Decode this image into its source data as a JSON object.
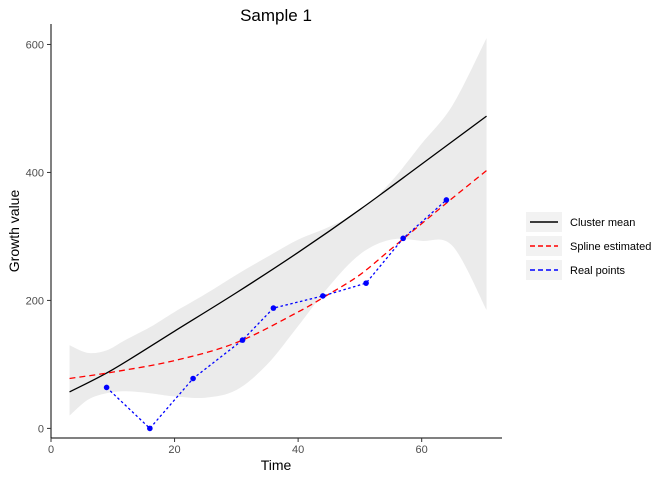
{
  "chart_data": {
    "type": "line",
    "title": "Sample  1",
    "xlabel": "Time",
    "ylabel": "Growth value",
    "xlim": [
      0,
      73
    ],
    "ylim": [
      -15,
      632
    ],
    "xticks": [
      0,
      20,
      40,
      60
    ],
    "yticks": [
      0,
      200,
      400,
      600
    ],
    "grid": false,
    "legend_position": "right",
    "band": {
      "color": "#ebebeb",
      "x": [
        3,
        6,
        9,
        12,
        16,
        20,
        25,
        30,
        35,
        40,
        45,
        50,
        55,
        60,
        65,
        70.5
      ],
      "lower": [
        20,
        45,
        55,
        58,
        55,
        50,
        48,
        60,
        100,
        160,
        222,
        272,
        295,
        293,
        285,
        185
      ],
      "upper": [
        130,
        118,
        122,
        138,
        158,
        182,
        210,
        240,
        268,
        295,
        315,
        340,
        385,
        445,
        505,
        610
      ]
    },
    "series": [
      {
        "name": "Cluster mean",
        "color": "#000000",
        "dash": "solid",
        "x": [
          3,
          10,
          20,
          30,
          40,
          50,
          60,
          70.5
        ],
        "y": [
          57,
          92,
          152,
          212,
          275,
          342,
          413,
          488
        ]
      },
      {
        "name": "Spline estimated",
        "color": "#ff0000",
        "dash": "dashed",
        "x": [
          3,
          10,
          20,
          30,
          40,
          45,
          50,
          55,
          60,
          65,
          70.5
        ],
        "y": [
          78,
          88,
          106,
          134,
          182,
          210,
          240,
          280,
          320,
          360,
          403
        ]
      },
      {
        "name": "Real points",
        "color": "#0000ff",
        "dash": "dotted",
        "markers": true,
        "x": [
          9,
          16,
          23,
          31,
          36,
          44,
          51,
          57,
          64
        ],
        "y": [
          64,
          0,
          78,
          138,
          188,
          207,
          227,
          297,
          357
        ]
      }
    ]
  }
}
